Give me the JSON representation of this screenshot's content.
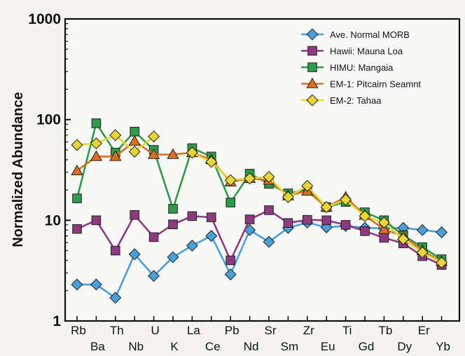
{
  "chart_data": {
    "type": "line",
    "title": "",
    "xlabel": "",
    "ylabel": "Normalized Abundance",
    "yscale": "log",
    "ylim": [
      1,
      1000
    ],
    "y_ticks": [
      "1",
      "10",
      "100",
      "1000"
    ],
    "categories": [
      "Rb",
      "Ba",
      "Th",
      "Nb",
      "U",
      "K",
      "La",
      "Ce",
      "Pb",
      "Nd",
      "Sr",
      "Sm",
      "Zr",
      "Eu",
      "Ti",
      "Gd",
      "Tb",
      "Dy",
      "Er",
      "Yb"
    ],
    "legend_position": "top-right",
    "grid": false,
    "series": [
      {
        "name": "Ave. Normal MORB",
        "color": "#4a9fd8",
        "marker": "diamond",
        "values": [
          2.3,
          2.3,
          1.7,
          4.6,
          2.8,
          4.3,
          5.6,
          7.0,
          2.9,
          8.0,
          6.1,
          8.4,
          9.5,
          8.5,
          8.8,
          8.4,
          8.3,
          8.4,
          8.0,
          7.6
        ]
      },
      {
        "name": "Hawii: Mauna Loa",
        "color": "#8e3a7e",
        "marker": "square",
        "values": [
          8.2,
          10.0,
          5.0,
          11.3,
          6.8,
          9.1,
          11.0,
          10.7,
          4.0,
          10.2,
          12.6,
          9.4,
          10.1,
          10.0,
          9.0,
          7.8,
          6.7,
          5.9,
          4.4,
          3.6
        ]
      },
      {
        "name": "HIMU: Mangaia",
        "color": "#2e9a4a",
        "marker": "square",
        "values": [
          16.5,
          92,
          47,
          76,
          50,
          13,
          52,
          43,
          15,
          29,
          23,
          18.5,
          20,
          13.5,
          15.2,
          12,
          10,
          7.1,
          5.4,
          4.1
        ]
      },
      {
        "name": "EM-1: Pitcairn Seamnt",
        "color": "#d86f22",
        "marker": "triangle",
        "values": [
          31,
          43,
          43,
          61,
          45,
          45,
          47,
          40,
          24,
          26,
          25,
          17.5,
          19.5,
          13.5,
          17,
          11.2,
          8.1,
          7.0,
          5.0,
          3.9
        ]
      },
      {
        "name": "EM-2: Tahaa",
        "color": "#e8d636",
        "marker": "diamond",
        "values": [
          56,
          58,
          70,
          48,
          68,
          null,
          47,
          38,
          25,
          26,
          27,
          17,
          22,
          13.5,
          16,
          11,
          9.5,
          6.5,
          4.8,
          3.8
        ]
      }
    ]
  }
}
